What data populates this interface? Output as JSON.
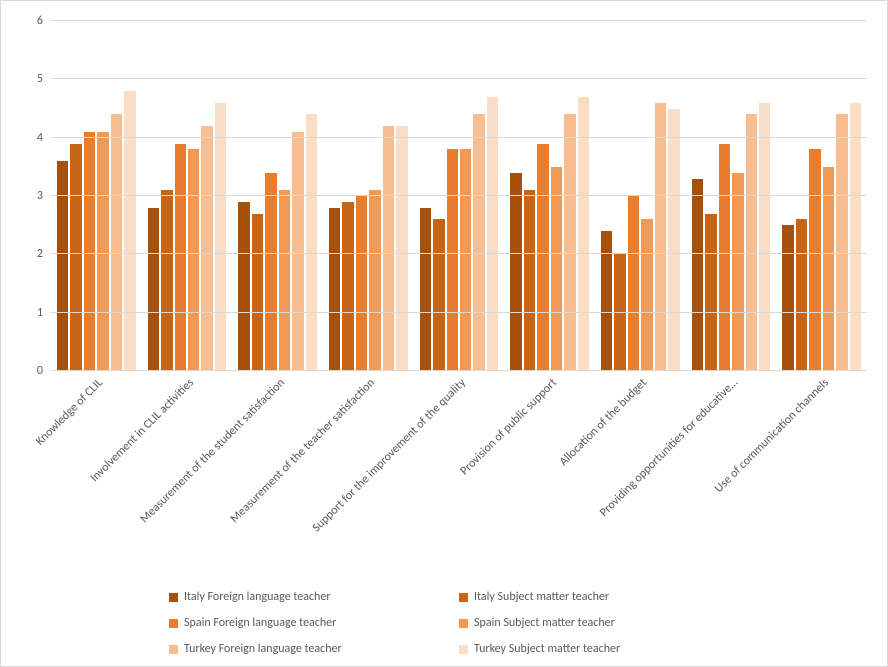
{
  "chart": {
    "type": "bar-grouped",
    "background_color": "#ffffff",
    "border_color": "#d9d9d9",
    "grid_color": "#d9d9d9",
    "tick_label_color": "#595959",
    "tick_label_fontsize": 12,
    "yaxis": {
      "min": 0,
      "max": 6,
      "step": 1,
      "ticks": [
        0,
        1,
        2,
        3,
        4,
        5,
        6
      ]
    },
    "categories": [
      "Knowledge of CLIL",
      "Involvement in CLIL activities",
      "Measurement of the student satisfaction",
      "Measurement of the teacher satisfaction",
      "Support for the improvement of the quality",
      "Provision of public support",
      "Allocation of the budget",
      "Providing opportunities for educative…",
      "Use of communication channels"
    ],
    "series": [
      {
        "name": "Italy Foreign language teacher",
        "color": "#a5500b",
        "values": [
          3.6,
          2.8,
          2.9,
          2.8,
          2.8,
          3.4,
          2.4,
          3.3,
          2.5
        ]
      },
      {
        "name": "Italy Subject matter teacher",
        "color": "#c86416",
        "values": [
          3.9,
          3.1,
          2.7,
          2.9,
          2.6,
          3.1,
          2.0,
          2.7,
          2.6
        ]
      },
      {
        "name": "Spain Foreign language teacher",
        "color": "#e87d2e",
        "values": [
          4.1,
          3.9,
          3.4,
          3.0,
          3.8,
          3.9,
          3.0,
          3.9,
          3.8
        ]
      },
      {
        "name": "Spain Subject matter teacher",
        "color": "#f09a55",
        "values": [
          4.1,
          3.8,
          3.1,
          3.1,
          3.8,
          3.5,
          2.6,
          3.4,
          3.5
        ]
      },
      {
        "name": "Turkey Foreign language teacher",
        "color": "#f7be92",
        "values": [
          4.4,
          4.2,
          4.1,
          4.2,
          4.4,
          4.4,
          4.6,
          4.4,
          4.4
        ]
      },
      {
        "name": "Turkey Subject matter teacher",
        "color": "#fbdcc4",
        "values": [
          4.8,
          4.6,
          4.4,
          4.2,
          4.7,
          4.7,
          4.5,
          4.6,
          4.6
        ]
      }
    ],
    "legend": {
      "position": "bottom",
      "columns": 2
    },
    "x_label_rotation_deg": -45
  }
}
